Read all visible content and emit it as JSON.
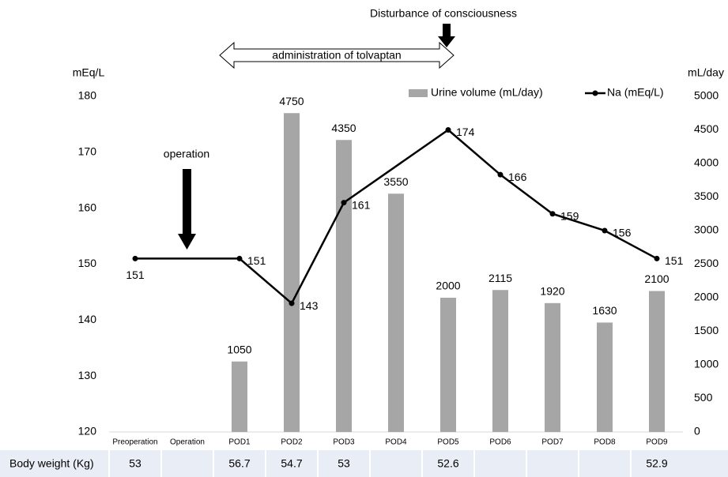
{
  "chart_data": {
    "type": "bar_line",
    "annotations": {
      "top": "Disturbance of consciousness",
      "span": "administration of tolvaptan",
      "operation": "operation"
    },
    "y_label": "mEq/L",
    "y2_label": "mL/day",
    "categories": [
      "Preoperation",
      "Operation",
      "POD1",
      "POD2",
      "POD3",
      "POD4",
      "POD5",
      "POD6",
      "POD7",
      "POD8",
      "POD9"
    ],
    "series": [
      {
        "name": "Urine volume (mL/day)",
        "type": "bar",
        "axis": "y2",
        "color": "#a6a6a6",
        "values": [
          null,
          null,
          1050,
          4750,
          4350,
          3550,
          2000,
          2115,
          1920,
          1630,
          2100
        ]
      },
      {
        "name": "Na (mEq/L)",
        "type": "line",
        "axis": "y",
        "color": "#000000",
        "span_gaps": true,
        "values": [
          151,
          null,
          151,
          143,
          161,
          null,
          174,
          166,
          159,
          156,
          151
        ]
      }
    ],
    "ylim": [
      120,
      180
    ],
    "yticks": [
      120,
      130,
      140,
      150,
      160,
      170,
      180
    ],
    "y2lim": [
      0,
      5000
    ],
    "y2ticks": [
      0,
      500,
      1000,
      1500,
      2000,
      2500,
      3000,
      3500,
      4000,
      4500,
      5000
    ],
    "grid": false,
    "legend": "top-right"
  },
  "table": {
    "label": "Body weight (Kg)",
    "values": [
      53,
      null,
      56.7,
      54.7,
      53,
      null,
      52.6,
      null,
      null,
      null,
      52.9
    ]
  }
}
